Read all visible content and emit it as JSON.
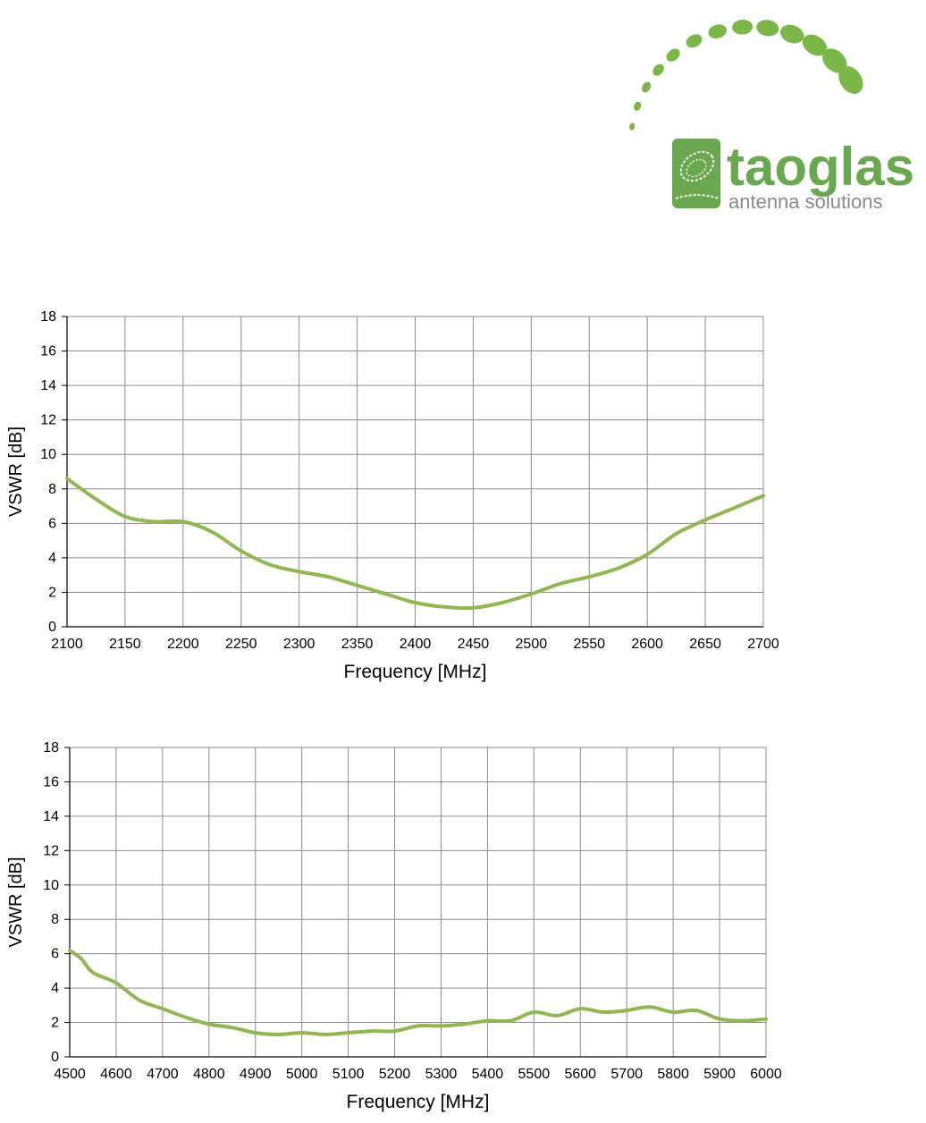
{
  "logo": {
    "brand": "taoglas",
    "tagline": "antenna solutions",
    "brand_color": "#6aa84f",
    "dot_color": "#7ab648"
  },
  "style": {
    "line_color": "#8fb852",
    "grid_color": "#8c8c8c"
  },
  "chart_data": [
    {
      "type": "line",
      "xlabel": "Frequency [MHz]",
      "ylabel": "VSWR [dB]",
      "xlim": [
        2100,
        2700
      ],
      "ylim": [
        0,
        18
      ],
      "xticks": [
        2100,
        2150,
        2200,
        2250,
        2300,
        2350,
        2400,
        2450,
        2500,
        2550,
        2600,
        2650,
        2700
      ],
      "yticks": [
        0,
        2,
        4,
        6,
        8,
        10,
        12,
        14,
        16,
        18
      ],
      "grid": true,
      "series": [
        {
          "x": [
            2100,
            2125,
            2150,
            2175,
            2200,
            2225,
            2250,
            2275,
            2300,
            2325,
            2350,
            2375,
            2400,
            2425,
            2450,
            2475,
            2500,
            2525,
            2550,
            2575,
            2600,
            2625,
            2650,
            2675,
            2700
          ],
          "y": [
            8.6,
            7.4,
            6.4,
            6.1,
            6.1,
            5.5,
            4.4,
            3.6,
            3.2,
            2.9,
            2.4,
            1.9,
            1.4,
            1.15,
            1.1,
            1.4,
            1.9,
            2.5,
            2.9,
            3.4,
            4.2,
            5.4,
            6.2,
            6.9,
            7.6
          ]
        }
      ]
    },
    {
      "type": "line",
      "xlabel": "Frequency [MHz]",
      "ylabel": "VSWR [dB]",
      "xlim": [
        4500,
        6000
      ],
      "ylim": [
        0,
        18
      ],
      "xticks": [
        4500,
        4600,
        4700,
        4800,
        4900,
        5000,
        5100,
        5200,
        5300,
        5400,
        5500,
        5600,
        5700,
        5800,
        5900,
        6000
      ],
      "yticks": [
        0,
        2,
        4,
        6,
        8,
        10,
        12,
        14,
        16,
        18
      ],
      "grid": true,
      "series": [
        {
          "x": [
            4500,
            4525,
            4550,
            4600,
            4650,
            4700,
            4750,
            4800,
            4850,
            4900,
            4950,
            5000,
            5050,
            5100,
            5150,
            5200,
            5250,
            5300,
            5350,
            5400,
            5450,
            5500,
            5550,
            5600,
            5650,
            5700,
            5750,
            5800,
            5850,
            5900,
            5950,
            6000
          ],
          "y": [
            6.2,
            5.7,
            4.9,
            4.3,
            3.3,
            2.8,
            2.3,
            1.9,
            1.7,
            1.4,
            1.3,
            1.4,
            1.3,
            1.4,
            1.5,
            1.5,
            1.8,
            1.8,
            1.9,
            2.1,
            2.1,
            2.6,
            2.4,
            2.8,
            2.6,
            2.7,
            2.9,
            2.6,
            2.7,
            2.2,
            2.1,
            2.2
          ]
        }
      ]
    }
  ]
}
